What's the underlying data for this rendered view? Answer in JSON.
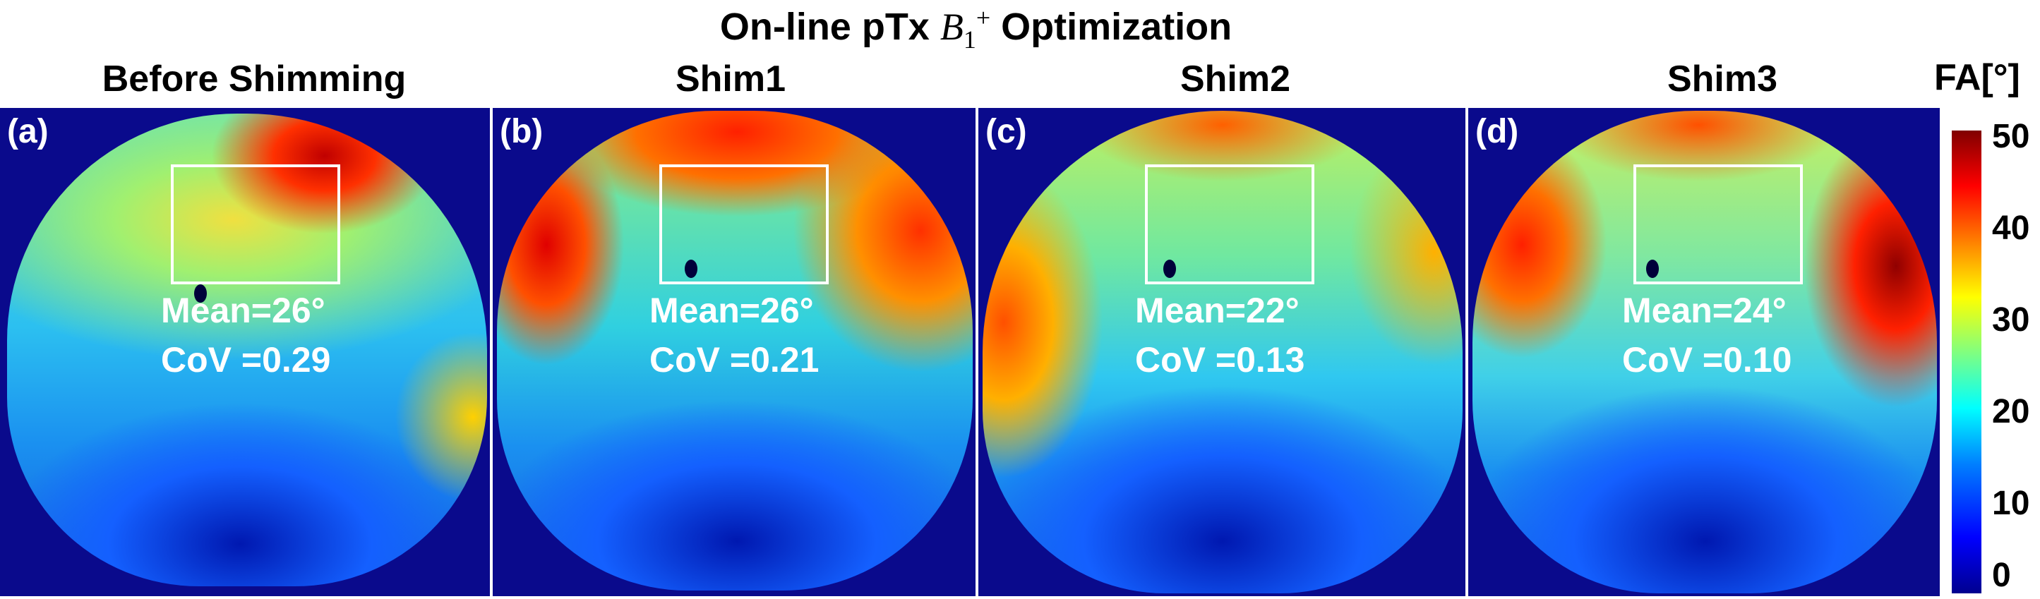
{
  "figure_title": {
    "prefix": "On-line pTx ",
    "symbol": "B",
    "subscript": "1",
    "superscript": "+",
    "suffix": " Optimization"
  },
  "panels": [
    {
      "title": "Before Shimming",
      "label": "(a)",
      "mean": "Mean=26°",
      "cov": "CoV =0.29"
    },
    {
      "title": "Shim1",
      "label": "(b)",
      "mean": "Mean=26°",
      "cov": "CoV =0.21"
    },
    {
      "title": "Shim2",
      "label": "(c)",
      "mean": "Mean=22°",
      "cov": "CoV =0.13"
    },
    {
      "title": "Shim3",
      "label": "(d)",
      "mean": "Mean=24°",
      "cov": "CoV =0.10"
    }
  ],
  "colorbar": {
    "title": "FA[°]",
    "ticks": [
      "50",
      "40",
      "30",
      "20",
      "10",
      "0"
    ],
    "range": [
      0,
      50
    ],
    "colormap": "jet"
  }
}
